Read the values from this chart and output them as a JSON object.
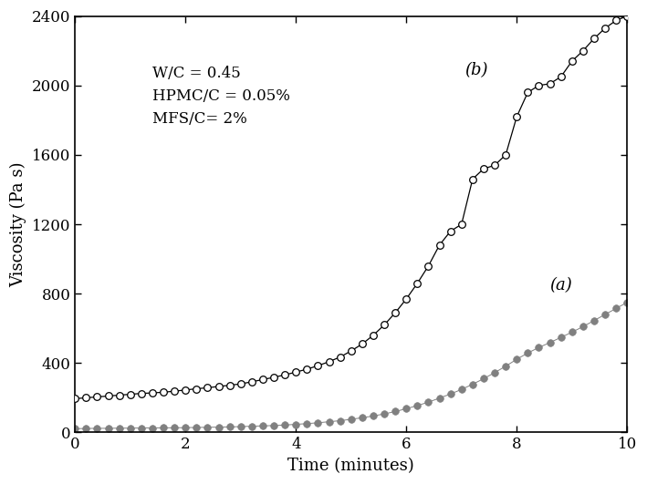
{
  "annotation": "W/C = 0.45\nHPMC/C = 0.05%\nMFS/C= 2%",
  "xlabel": "Time (minutes)",
  "ylabel": "Viscosity (Pa s)",
  "xlim": [
    0,
    10
  ],
  "ylim": [
    0,
    2400
  ],
  "yticks": [
    0,
    400,
    800,
    1200,
    1600,
    2000,
    2400
  ],
  "xticks": [
    0,
    2,
    4,
    6,
    8,
    10
  ],
  "label_a": "(a)",
  "label_b": "(b)",
  "series_b_x": [
    0.0,
    0.2,
    0.4,
    0.6,
    0.8,
    1.0,
    1.2,
    1.4,
    1.6,
    1.8,
    2.0,
    2.2,
    2.4,
    2.6,
    2.8,
    3.0,
    3.2,
    3.4,
    3.6,
    3.8,
    4.0,
    4.2,
    4.4,
    4.6,
    4.8,
    5.0,
    5.2,
    5.4,
    5.6,
    5.8,
    6.0,
    6.2,
    6.4,
    6.6,
    6.8,
    7.0,
    7.2,
    7.4,
    7.6,
    7.8,
    8.0,
    8.2,
    8.4,
    8.6,
    8.8,
    9.0,
    9.2,
    9.4,
    9.6,
    9.8,
    10.0
  ],
  "series_b_y": [
    195,
    200,
    205,
    210,
    215,
    220,
    225,
    228,
    232,
    238,
    245,
    252,
    258,
    265,
    272,
    280,
    292,
    305,
    318,
    332,
    348,
    365,
    385,
    408,
    435,
    470,
    510,
    560,
    620,
    690,
    770,
    860,
    960,
    1080,
    1160,
    1200,
    1460,
    1520,
    1540,
    1600,
    1820,
    1960,
    2000,
    2010,
    2050,
    2140,
    2200,
    2270,
    2330,
    2375,
    2400
  ],
  "series_a_x": [
    0.0,
    0.2,
    0.4,
    0.6,
    0.8,
    1.0,
    1.2,
    1.4,
    1.6,
    1.8,
    2.0,
    2.2,
    2.4,
    2.6,
    2.8,
    3.0,
    3.2,
    3.4,
    3.6,
    3.8,
    4.0,
    4.2,
    4.4,
    4.6,
    4.8,
    5.0,
    5.2,
    5.4,
    5.6,
    5.8,
    6.0,
    6.2,
    6.4,
    6.6,
    6.8,
    7.0,
    7.2,
    7.4,
    7.6,
    7.8,
    8.0,
    8.2,
    8.4,
    8.6,
    8.8,
    9.0,
    9.2,
    9.4,
    9.6,
    9.8,
    10.0
  ],
  "series_a_y": [
    22,
    23,
    24,
    24,
    25,
    25,
    26,
    26,
    27,
    27,
    28,
    29,
    30,
    31,
    32,
    34,
    36,
    38,
    40,
    43,
    47,
    51,
    56,
    62,
    68,
    76,
    85,
    95,
    107,
    121,
    137,
    155,
    175,
    198,
    222,
    248,
    278,
    310,
    345,
    382,
    422,
    458,
    490,
    518,
    548,
    578,
    610,
    645,
    680,
    715,
    750
  ],
  "color_a": "#808080",
  "color_b": "#000000",
  "bg_color": "#ffffff"
}
